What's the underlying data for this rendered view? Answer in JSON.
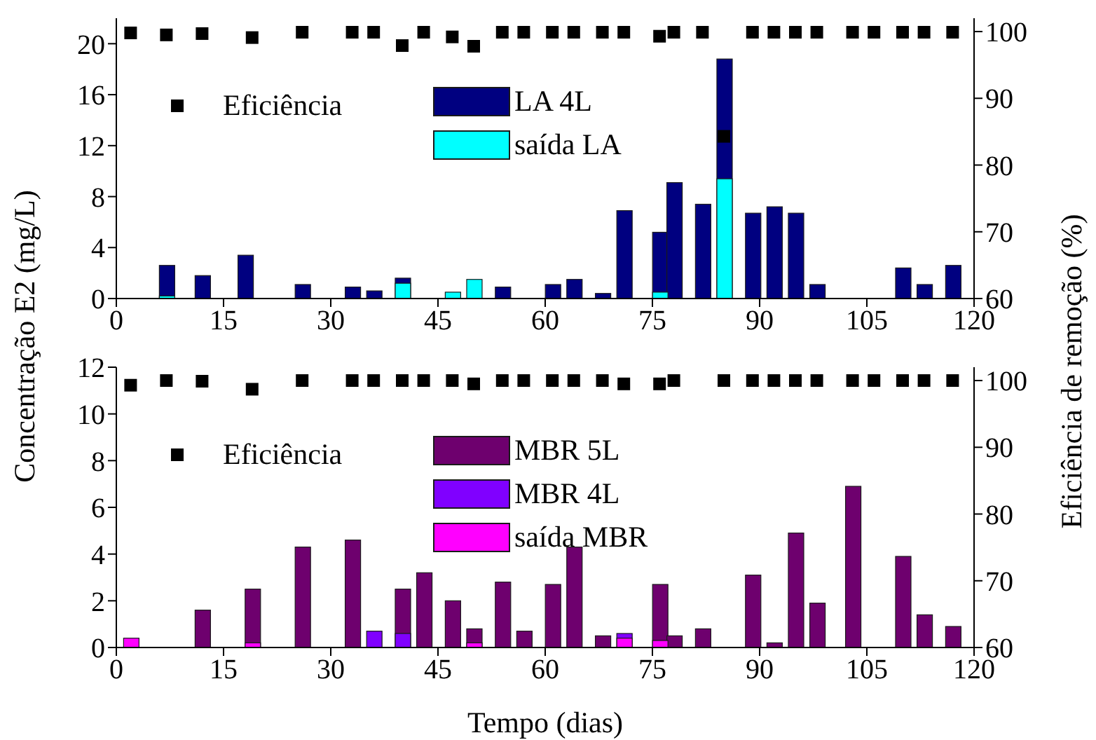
{
  "chart_data": [
    {
      "type": "bar",
      "ylabel": "Concentração E2 (mg/L)",
      "y2label": "Eficiência de remoção (%)",
      "xlim": [
        0,
        120
      ],
      "xticks": [
        0,
        15,
        30,
        45,
        60,
        75,
        90,
        105,
        120
      ],
      "ylim": [
        0,
        22
      ],
      "yticks": [
        0,
        4,
        8,
        12,
        16,
        20
      ],
      "y2lim": [
        60,
        102
      ],
      "y2ticks": [
        60,
        70,
        80,
        90,
        100
      ],
      "legend": "top",
      "marker": "square",
      "series": [
        {
          "name": "LA 4L",
          "color": "#000080",
          "x": [
            7,
            12,
            18,
            26,
            33,
            36,
            40,
            54,
            61,
            64,
            68,
            71,
            76,
            78,
            82,
            85,
            89,
            92,
            95,
            98,
            110,
            113,
            117
          ],
          "values": [
            2.6,
            1.8,
            3.4,
            1.1,
            0.9,
            0.6,
            1.6,
            0.9,
            1.1,
            1.5,
            0.4,
            6.9,
            5.2,
            9.1,
            7.4,
            18.8,
            6.7,
            7.2,
            6.7,
            1.1,
            2.4,
            1.1,
            2.6
          ]
        },
        {
          "name": "saída LA",
          "color": "#00ffff",
          "x": [
            7,
            12,
            18,
            40,
            47,
            50,
            76,
            85
          ],
          "values": [
            0.2,
            null,
            null,
            1.2,
            0.5,
            1.5,
            0.5,
            9.4
          ]
        },
        {
          "name": "Eficiência",
          "type": "scatter",
          "axis": "y2",
          "color": "#000000",
          "x": [
            2,
            7,
            12,
            19,
            26,
            33,
            36,
            40,
            43,
            47,
            50,
            54,
            57,
            61,
            64,
            68,
            71,
            76,
            78,
            82,
            85,
            89,
            92,
            95,
            98,
            103,
            106,
            110,
            113,
            117
          ],
          "values": [
            99.8,
            99.5,
            99.7,
            99.1,
            99.9,
            99.9,
            99.9,
            97.9,
            99.9,
            99.2,
            97.8,
            99.9,
            99.9,
            99.9,
            99.9,
            99.9,
            99.9,
            99.3,
            99.9,
            99.9,
            84.3,
            99.9,
            99.9,
            99.9,
            99.9,
            99.9,
            99.9,
            99.9,
            99.9,
            99.9
          ]
        }
      ]
    },
    {
      "type": "bar",
      "xlabel": "Tempo (dias)",
      "xlim": [
        0,
        120
      ],
      "xticks": [
        0,
        15,
        30,
        45,
        60,
        75,
        90,
        105,
        120
      ],
      "ylim": [
        0,
        12
      ],
      "yticks": [
        0,
        2,
        4,
        6,
        8,
        10,
        12
      ],
      "y2lim": [
        60,
        102
      ],
      "y2ticks": [
        60,
        70,
        80,
        90,
        100
      ],
      "legend": "top",
      "marker": "square",
      "series": [
        {
          "name": "MBR 5L",
          "color": "#6e006e",
          "x": [
            12,
            19,
            26,
            33,
            40,
            43,
            47,
            50,
            54,
            57,
            61,
            64,
            68,
            76,
            78,
            82,
            89,
            92,
            95,
            98,
            103,
            110,
            113,
            117
          ],
          "values": [
            1.6,
            2.5,
            4.3,
            4.6,
            2.5,
            3.2,
            2.0,
            0.8,
            2.8,
            0.7,
            2.7,
            4.3,
            0.5,
            2.7,
            0.5,
            0.8,
            3.1,
            0.2,
            4.9,
            1.9,
            6.9,
            3.9,
            1.4,
            0.9
          ]
        },
        {
          "name": "MBR 4L",
          "color": "#8000ff",
          "x": [
            36,
            40,
            71
          ],
          "values": [
            0.7,
            0.6,
            0.6
          ]
        },
        {
          "name": "saída MBR",
          "color": "#ff00ff",
          "x": [
            2,
            19,
            50,
            71,
            76
          ],
          "values": [
            0.4,
            0.2,
            0.2,
            0.4,
            0.3
          ]
        },
        {
          "name": "Eficiência",
          "type": "scatter",
          "axis": "y2",
          "color": "#000000",
          "x": [
            2,
            7,
            12,
            19,
            26,
            33,
            36,
            40,
            43,
            47,
            50,
            54,
            57,
            61,
            64,
            68,
            71,
            76,
            78,
            85,
            89,
            92,
            95,
            98,
            103,
            106,
            110,
            113,
            117
          ],
          "values": [
            99.3,
            100,
            99.9,
            98.7,
            100,
            100,
            100,
            100,
            100,
            100,
            99.5,
            100,
            100,
            100,
            100,
            100,
            99.5,
            99.5,
            100,
            100,
            100,
            100,
            100,
            100,
            100,
            100,
            100,
            100,
            100
          ]
        }
      ]
    }
  ]
}
